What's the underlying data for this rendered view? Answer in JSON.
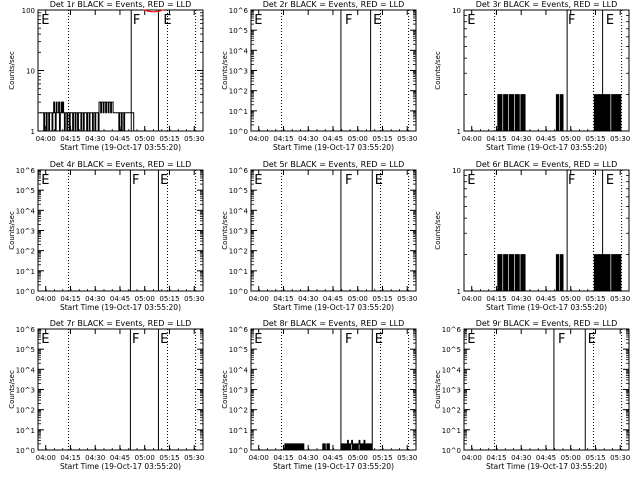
{
  "figure": {
    "x_title": "Start Time (19-Oct-17 03:55:20)",
    "y_title": "Counts/sec",
    "time_ticks": [
      "04:00",
      "04:15",
      "04:30",
      "04:45",
      "05:00",
      "05:15",
      "05:30"
    ],
    "time_tick_minutes": [
      4.67,
      19.67,
      34.67,
      49.67,
      64.67,
      79.67,
      94.67
    ],
    "x_range_minutes": [
      0,
      100
    ],
    "events_color": "#000000",
    "lld_color": "#ff0000"
  },
  "chart_data": [
    {
      "type": "line",
      "title": "Det 1r BLACK = Events, RED = LLD",
      "yscale": "log",
      "ylim": [
        1,
        100
      ],
      "ytick_labels": [
        "1",
        "10",
        "100"
      ],
      "markers": [
        {
          "label": "E",
          "x": 2
        },
        {
          "label": "F",
          "x": 57.5
        },
        {
          "label": "E",
          "x": 76
        }
      ],
      "dotted_lines_x": [
        18.5,
        78.5,
        95.5
      ],
      "solid_lines_x": [
        56.5,
        73
      ],
      "series": [
        {
          "name": "Events",
          "x_start": 1,
          "x_step": 0.5,
          "values": [
            2,
            2,
            2,
            2,
            2,
            1,
            2,
            2,
            1,
            2,
            2,
            1,
            2,
            2,
            2,
            1,
            2,
            3,
            2,
            1,
            3,
            2,
            2,
            3,
            1,
            2,
            3,
            2,
            3,
            2,
            1,
            2,
            2,
            1,
            2,
            2,
            1,
            2,
            2,
            2,
            1,
            2,
            2,
            1,
            2,
            2,
            1,
            2,
            2,
            2,
            1,
            2,
            2,
            1,
            2,
            2,
            2,
            1,
            2,
            2,
            1,
            2,
            2,
            2,
            1,
            2,
            2,
            1,
            2,
            2,
            2,
            1,
            3,
            3,
            2,
            3,
            3,
            2,
            3,
            3,
            2,
            3,
            3,
            2,
            3,
            3,
            2,
            3,
            3,
            2,
            2,
            2,
            2,
            2,
            2,
            2,
            1,
            2,
            2,
            1,
            2,
            2,
            1,
            2,
            2,
            2,
            2,
            2,
            2,
            2,
            2,
            2,
            2,
            2,
            1,
            1,
            1
          ]
        },
        {
          "name": "LLD",
          "x_start": 64,
          "x_step": 1,
          "values": [
            100,
            98,
            96,
            95,
            94,
            93,
            93,
            94,
            95,
            96,
            98,
            100
          ]
        }
      ]
    },
    {
      "type": "line",
      "title": "Det 2r BLACK = Events, RED = LLD",
      "yscale": "log",
      "ylim": [
        1,
        1000000
      ],
      "ytick_labels": [
        "10^0",
        "10^1",
        "10^2",
        "10^3",
        "10^4",
        "10^5",
        "10^6"
      ],
      "markers": [
        {
          "label": "E",
          "x": 2
        },
        {
          "label": "F",
          "x": 57
        },
        {
          "label": "E",
          "x": 74
        }
      ],
      "dotted_lines_x": [
        18.5,
        78.5,
        95.5
      ],
      "solid_lines_x": [
        54.5,
        72.5
      ],
      "series": []
    },
    {
      "type": "line",
      "title": "Det 3r BLACK = Events, RED = LLD",
      "yscale": "log",
      "ylim": [
        1,
        10
      ],
      "ytick_labels": [
        "1",
        "10"
      ],
      "markers": [
        {
          "label": "E",
          "x": 2
        },
        {
          "label": "F",
          "x": 63
        },
        {
          "label": "E",
          "x": 86
        }
      ],
      "dotted_lines_x": [
        18.5,
        78.5,
        95.5
      ],
      "solid_lines_x": [
        62.5,
        84
      ],
      "series": [
        {
          "name": "Events",
          "x_start": 20,
          "x_step": 0.5,
          "values": [
            1,
            2,
            1,
            2,
            1,
            2,
            1,
            1,
            2,
            1,
            2,
            1,
            2,
            1,
            1,
            2,
            1,
            2,
            1,
            2,
            1,
            1,
            2,
            1,
            2,
            1,
            2,
            1,
            1,
            2,
            1,
            2,
            1,
            2,
            1,
            1,
            1,
            1,
            1,
            1,
            1,
            1,
            1,
            1,
            1,
            1,
            1,
            1,
            1,
            1,
            1,
            1,
            1,
            1,
            1,
            1,
            1,
            1,
            1,
            1,
            1,
            1,
            1,
            1,
            1,
            1,
            1,
            1,
            1,
            1,
            1,
            1,
            2,
            1,
            2,
            1,
            1,
            2,
            1,
            2,
            1,
            1,
            1,
            1,
            1,
            1,
            1,
            1,
            1,
            1,
            1,
            1,
            1,
            1,
            1,
            1,
            1,
            1,
            1,
            1,
            1,
            1,
            1,
            1,
            1,
            1,
            1,
            1,
            1,
            1,
            1,
            1,
            1,
            1,
            1,
            1,
            1,
            1,
            2,
            1,
            2,
            1,
            2,
            1,
            2,
            1,
            2,
            1,
            2,
            1,
            2,
            1,
            2,
            1,
            2,
            1,
            2,
            1,
            1,
            2,
            1,
            2,
            1,
            2,
            1,
            2,
            1,
            2,
            1,
            2,
            1,
            1
          ]
        }
      ]
    },
    {
      "type": "line",
      "title": "Det 4r BLACK = Events, RED = LLD",
      "yscale": "log",
      "ylim": [
        1,
        1000000
      ],
      "ytick_labels": [
        "10^0",
        "10^1",
        "10^2",
        "10^3",
        "10^4",
        "10^5",
        "10^6"
      ],
      "markers": [
        {
          "label": "E",
          "x": 2
        },
        {
          "label": "F",
          "x": 57
        },
        {
          "label": "E",
          "x": 74
        }
      ],
      "dotted_lines_x": [
        18.5,
        78.5,
        95.5
      ],
      "solid_lines_x": [
        56,
        73
      ],
      "series": []
    },
    {
      "type": "line",
      "title": "Det 5r BLACK = Events, RED = LLD",
      "yscale": "log",
      "ylim": [
        1,
        1000000
      ],
      "ytick_labels": [
        "10^0",
        "10^1",
        "10^2",
        "10^3",
        "10^4",
        "10^5",
        "10^6"
      ],
      "markers": [
        {
          "label": "E",
          "x": 2
        },
        {
          "label": "F",
          "x": 57
        },
        {
          "label": "E",
          "x": 75
        }
      ],
      "dotted_lines_x": [
        18.5,
        78.5,
        95.5
      ],
      "solid_lines_x": [
        54.5,
        73.5
      ],
      "series": []
    },
    {
      "type": "line",
      "title": "Det 6r BLACK = Events, RED = LLD",
      "yscale": "log",
      "ylim": [
        1,
        10
      ],
      "ytick_labels": [
        "1",
        "10"
      ],
      "markers": [
        {
          "label": "E",
          "x": 2
        },
        {
          "label": "F",
          "x": 63
        },
        {
          "label": "E",
          "x": 86
        }
      ],
      "dotted_lines_x": [
        18.5,
        78.5,
        95.5
      ],
      "solid_lines_x": [
        62.5,
        84
      ],
      "series": [
        {
          "name": "Events",
          "x_start": 20,
          "x_step": 0.5,
          "values": [
            1,
            2,
            1,
            2,
            1,
            2,
            1,
            1,
            2,
            1,
            2,
            1,
            2,
            1,
            1,
            2,
            1,
            2,
            1,
            2,
            1,
            1,
            2,
            1,
            2,
            1,
            2,
            1,
            1,
            2,
            1,
            2,
            1,
            2,
            1,
            1,
            1,
            1,
            1,
            1,
            1,
            1,
            1,
            1,
            1,
            1,
            1,
            1,
            1,
            1,
            1,
            1,
            1,
            1,
            1,
            1,
            1,
            1,
            1,
            1,
            1,
            1,
            1,
            1,
            1,
            1,
            1,
            1,
            1,
            1,
            1,
            1,
            2,
            1,
            2,
            1,
            1,
            2,
            1,
            2,
            1,
            1,
            1,
            1,
            1,
            1,
            1,
            1,
            1,
            1,
            1,
            1,
            1,
            1,
            1,
            1,
            1,
            1,
            1,
            1,
            1,
            1,
            1,
            1,
            1,
            1,
            1,
            1,
            1,
            1,
            1,
            1,
            1,
            1,
            1,
            1,
            1,
            1,
            2,
            1,
            2,
            1,
            2,
            1,
            2,
            1,
            2,
            1,
            2,
            1,
            2,
            1,
            2,
            1,
            2,
            1,
            2,
            1,
            1,
            2,
            1,
            2,
            1,
            2,
            1,
            2,
            1,
            2,
            1,
            2,
            1,
            1
          ]
        }
      ]
    },
    {
      "type": "line",
      "title": "Det 7r BLACK = Events, RED = LLD",
      "yscale": "log",
      "ylim": [
        1,
        1000000
      ],
      "ytick_labels": [
        "10^0",
        "10^1",
        "10^2",
        "10^3",
        "10^4",
        "10^5",
        "10^6"
      ],
      "markers": [
        {
          "label": "E",
          "x": 2
        },
        {
          "label": "F",
          "x": 57
        },
        {
          "label": "E",
          "x": 74
        }
      ],
      "dotted_lines_x": [
        18.5,
        78.5,
        95.5
      ],
      "solid_lines_x": [
        56,
        73
      ],
      "series": []
    },
    {
      "type": "line",
      "title": "Det 8r BLACK = Events, RED = LLD",
      "yscale": "log",
      "ylim": [
        1,
        1000000
      ],
      "ytick_labels": [
        "10^0",
        "10^1",
        "10^2",
        "10^3",
        "10^4",
        "10^5",
        "10^6"
      ],
      "markers": [
        {
          "label": "E",
          "x": 2
        },
        {
          "label": "F",
          "x": 57
        },
        {
          "label": "E",
          "x": 75
        }
      ],
      "dotted_lines_x": [
        18.5,
        78.5,
        95.5
      ],
      "solid_lines_x": [
        54.5,
        73.5
      ],
      "series": [
        {
          "name": "Events",
          "x_start": 20,
          "x_step": 0.5,
          "values": [
            1,
            2,
            1,
            2,
            1,
            2,
            1,
            2,
            1,
            2,
            1,
            2,
            1,
            2,
            1,
            2,
            1,
            2,
            1,
            2,
            1,
            2,
            1,
            2,
            1,
            1,
            1,
            1,
            1,
            1,
            1,
            1,
            1,
            1,
            1,
            1,
            1,
            1,
            1,
            1,
            1,
            1,
            1,
            1,
            1,
            1,
            1,
            2,
            1,
            2,
            1,
            1,
            2,
            1,
            2,
            1,
            1,
            1,
            1,
            1,
            1,
            1,
            1,
            1,
            1,
            1,
            1,
            1,
            1,
            2,
            1,
            2,
            1,
            2,
            1,
            2,
            1,
            3,
            1,
            2,
            1,
            2,
            3,
            1,
            2,
            1,
            2,
            1,
            2,
            1,
            2,
            3,
            1,
            2,
            1,
            2,
            1,
            3,
            1,
            2,
            1,
            2,
            1,
            2,
            1,
            2,
            1,
            1,
            1,
            1,
            1,
            1,
            1,
            1,
            1,
            1,
            1,
            1,
            1,
            1,
            1,
            1,
            1,
            1,
            1,
            1,
            1,
            1,
            1,
            1,
            1,
            1,
            1,
            1,
            1,
            1,
            1,
            1,
            1,
            1,
            1,
            1,
            1,
            1,
            1,
            1,
            1,
            1,
            1,
            1,
            1,
            1,
            1,
            1,
            1,
            1,
            1,
            1,
            1,
            1
          ]
        }
      ]
    },
    {
      "type": "line",
      "title": "Det 9r BLACK = Events, RED = LLD",
      "yscale": "log",
      "ylim": [
        1,
        1000000
      ],
      "ytick_labels": [
        "10^0",
        "10^1",
        "10^2",
        "10^3",
        "10^4",
        "10^5",
        "10^6"
      ],
      "markers": [
        {
          "label": "E",
          "x": 2
        },
        {
          "label": "F",
          "x": 57
        },
        {
          "label": "E",
          "x": 75
        }
      ],
      "dotted_lines_x": [
        18.5,
        78.5,
        95.5
      ],
      "solid_lines_x": [
        54.5,
        73.5
      ],
      "series": []
    }
  ]
}
